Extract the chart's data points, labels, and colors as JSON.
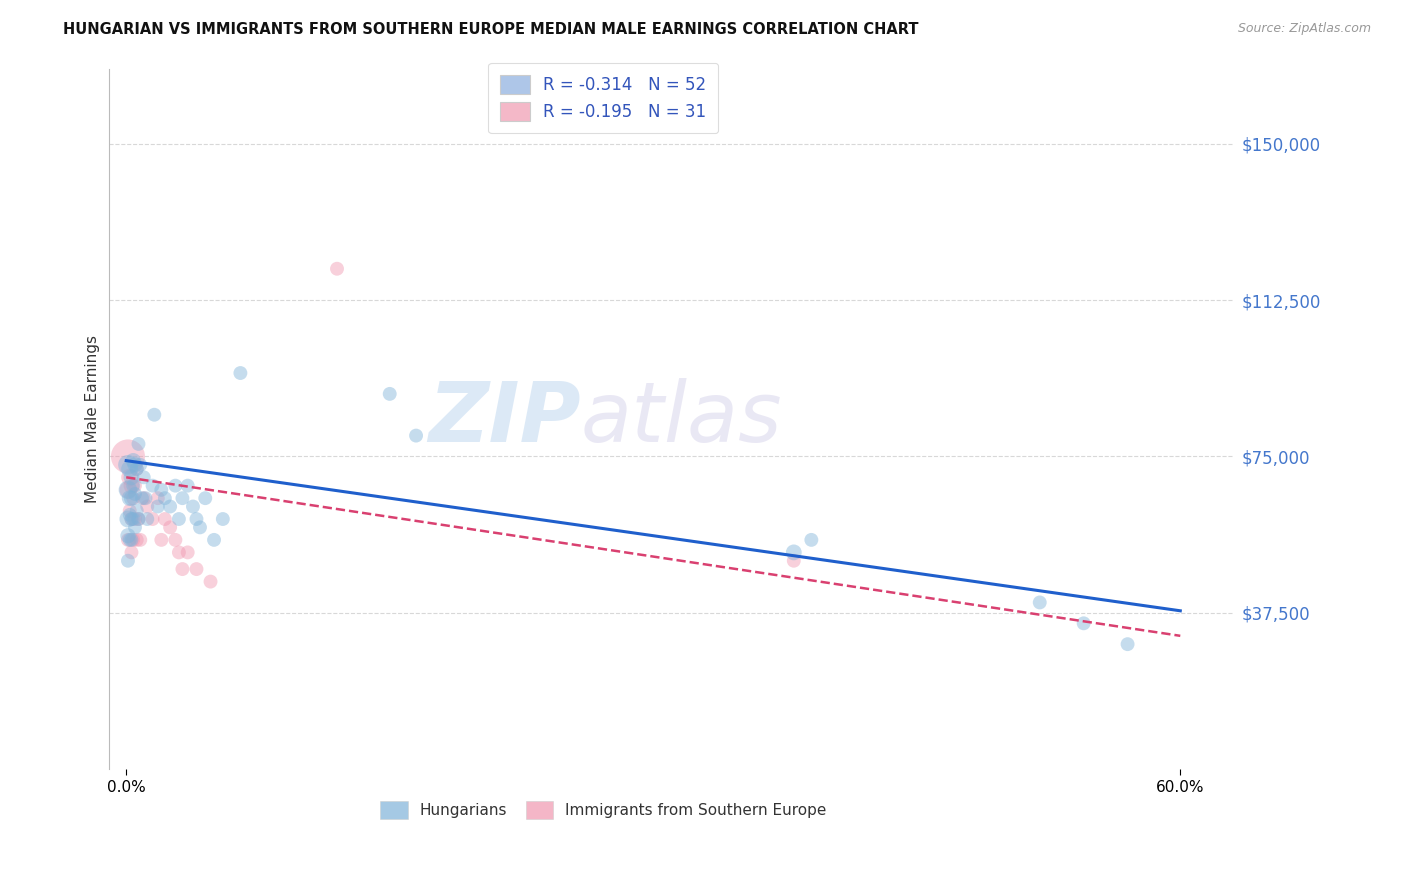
{
  "title": "HUNGARIAN VS IMMIGRANTS FROM SOUTHERN EUROPE MEDIAN MALE EARNINGS CORRELATION CHART",
  "source": "Source: ZipAtlas.com",
  "ylabel": "Median Male Earnings",
  "ytick_labels": [
    "$150,000",
    "$112,500",
    "$75,000",
    "$37,500"
  ],
  "ytick_values": [
    150000,
    112500,
    75000,
    37500
  ],
  "xtick_labels": [
    "0.0%",
    "60.0%"
  ],
  "xtick_values": [
    0.0,
    0.6
  ],
  "xlim": [
    -0.01,
    0.63
  ],
  "ylim": [
    0,
    168000
  ],
  "legend1_label": "R = -0.314   N = 52",
  "legend2_label": "R = -0.195   N = 31",
  "legend_color1": "#aec6e8",
  "legend_color2": "#f4b8c8",
  "blue_color": "#7fb3d9",
  "pink_color": "#f097b0",
  "line_blue": "#1f5fcc",
  "line_pink": "#d94070",
  "watermark_zip": "ZIP",
  "watermark_atlas": "atlas",
  "background": "#ffffff",
  "grid_color": "#d8d8d8",
  "blue_x": [
    0.001,
    0.001,
    0.001,
    0.001,
    0.001,
    0.002,
    0.002,
    0.002,
    0.002,
    0.003,
    0.003,
    0.003,
    0.003,
    0.004,
    0.004,
    0.004,
    0.005,
    0.005,
    0.005,
    0.006,
    0.006,
    0.007,
    0.007,
    0.008,
    0.009,
    0.01,
    0.011,
    0.012,
    0.015,
    0.016,
    0.018,
    0.02,
    0.022,
    0.025,
    0.028,
    0.03,
    0.032,
    0.035,
    0.038,
    0.04,
    0.042,
    0.045,
    0.05,
    0.055,
    0.065,
    0.15,
    0.165,
    0.38,
    0.39,
    0.52,
    0.545,
    0.57
  ],
  "blue_y": [
    73000,
    67000,
    60000,
    56000,
    50000,
    72000,
    65000,
    61000,
    55000,
    70000,
    65000,
    60000,
    55000,
    74000,
    68000,
    60000,
    73000,
    66000,
    58000,
    72000,
    62000,
    78000,
    60000,
    73000,
    65000,
    70000,
    65000,
    60000,
    68000,
    85000,
    63000,
    67000,
    65000,
    63000,
    68000,
    60000,
    65000,
    68000,
    63000,
    60000,
    58000,
    65000,
    55000,
    60000,
    95000,
    90000,
    80000,
    52000,
    55000,
    40000,
    35000,
    30000
  ],
  "blue_size": [
    200,
    180,
    150,
    120,
    100,
    150,
    130,
    100,
    100,
    130,
    120,
    100,
    100,
    120,
    100,
    100,
    120,
    100,
    100,
    100,
    100,
    100,
    100,
    100,
    100,
    100,
    100,
    100,
    100,
    100,
    100,
    100,
    100,
    100,
    100,
    100,
    100,
    100,
    100,
    100,
    100,
    100,
    100,
    100,
    100,
    100,
    100,
    130,
    100,
    100,
    100,
    100
  ],
  "pink_x": [
    0.001,
    0.001,
    0.001,
    0.002,
    0.002,
    0.003,
    0.003,
    0.003,
    0.004,
    0.004,
    0.005,
    0.005,
    0.006,
    0.006,
    0.007,
    0.008,
    0.01,
    0.012,
    0.015,
    0.018,
    0.02,
    0.022,
    0.025,
    0.028,
    0.03,
    0.032,
    0.035,
    0.04,
    0.048,
    0.12,
    0.38
  ],
  "pink_y": [
    75000,
    67000,
    55000,
    70000,
    62000,
    68000,
    60000,
    52000,
    65000,
    55000,
    68000,
    60000,
    72000,
    55000,
    60000,
    55000,
    65000,
    63000,
    60000,
    65000,
    55000,
    60000,
    58000,
    55000,
    52000,
    48000,
    52000,
    48000,
    45000,
    120000,
    50000
  ],
  "pink_size": [
    600,
    150,
    100,
    150,
    100,
    130,
    100,
    100,
    100,
    100,
    100,
    100,
    100,
    100,
    100,
    100,
    100,
    100,
    100,
    100,
    100,
    100,
    100,
    100,
    100,
    100,
    100,
    100,
    100,
    100,
    100
  ],
  "blue_line_x0": 0.0,
  "blue_line_y0": 74000,
  "blue_line_x1": 0.6,
  "blue_line_y1": 38000,
  "pink_line_x0": 0.0,
  "pink_line_y0": 70000,
  "pink_line_x1": 0.6,
  "pink_line_y1": 32000
}
